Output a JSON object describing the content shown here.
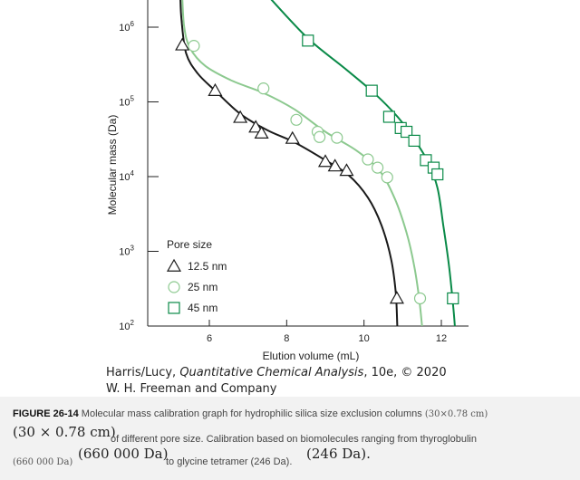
{
  "colors": {
    "series_12_5": "#1a1a1a",
    "series_25": "#8cc98f",
    "series_45": "#0a8a48",
    "caption_bg": "#f2f2f2"
  },
  "chart_data": {
    "type": "line",
    "title": "",
    "xlabel": "Elution volume (mL)",
    "ylabel": "Molecular mass (Da)",
    "xlim": [
      4.4,
      13.0
    ],
    "ylim_log10": [
      2,
      6.4
    ],
    "y_scale": "log",
    "x_ticks": [
      6,
      8,
      10,
      12
    ],
    "x_tick_labels": [
      "6",
      "8",
      "10",
      "12"
    ],
    "y_ticks_log10": [
      2,
      3,
      4,
      5,
      6
    ],
    "y_tick_labels": [
      {
        "base": "10",
        "exp": "2"
      },
      {
        "base": "10",
        "exp": "3"
      },
      {
        "base": "10",
        "exp": "4"
      },
      {
        "base": "10",
        "exp": "5"
      },
      {
        "base": "10",
        "exp": "6"
      }
    ],
    "legend": {
      "title": "Pore size",
      "position": "lower-left",
      "entries": [
        {
          "label": "12.5 nm",
          "marker": "triangle",
          "series": "12.5 nm"
        },
        {
          "label": "25 nm",
          "marker": "circle",
          "series": "25 nm"
        },
        {
          "label": "45 nm",
          "marker": "square",
          "series": "45 nm"
        }
      ]
    },
    "series": [
      {
        "name": "12.5 nm",
        "marker": "triangle",
        "color": "#1a1a1a",
        "points": [
          [
            5.3,
            5.76
          ],
          [
            6.15,
            5.15
          ],
          [
            6.8,
            4.79
          ],
          [
            7.2,
            4.66
          ],
          [
            7.35,
            4.58
          ],
          [
            8.15,
            4.51
          ],
          [
            9.0,
            4.2
          ],
          [
            9.25,
            4.14
          ],
          [
            9.55,
            4.08
          ],
          [
            10.85,
            2.37
          ]
        ],
        "curve": [
          [
            5.25,
            6.4
          ],
          [
            5.28,
            6.1
          ],
          [
            5.4,
            5.65
          ],
          [
            5.7,
            5.38
          ],
          [
            6.15,
            5.15
          ],
          [
            6.8,
            4.84
          ],
          [
            7.5,
            4.62
          ],
          [
            8.2,
            4.46
          ],
          [
            9.0,
            4.22
          ],
          [
            9.6,
            4.02
          ],
          [
            10.1,
            3.72
          ],
          [
            10.45,
            3.35
          ],
          [
            10.7,
            2.9
          ],
          [
            10.82,
            2.45
          ],
          [
            10.86,
            2.0
          ]
        ]
      },
      {
        "name": "25 nm",
        "marker": "circle",
        "color": "#8cc98f",
        "points": [
          [
            5.6,
            5.75
          ],
          [
            7.4,
            5.18
          ],
          [
            8.25,
            4.76
          ],
          [
            8.8,
            4.6
          ],
          [
            8.85,
            4.53
          ],
          [
            9.3,
            4.52
          ],
          [
            10.1,
            4.23
          ],
          [
            10.35,
            4.12
          ],
          [
            10.6,
            3.99
          ],
          [
            11.45,
            2.37
          ]
        ],
        "curve": [
          [
            5.3,
            6.4
          ],
          [
            5.35,
            6.0
          ],
          [
            5.5,
            5.72
          ],
          [
            5.9,
            5.48
          ],
          [
            6.6,
            5.28
          ],
          [
            7.4,
            5.12
          ],
          [
            8.2,
            4.9
          ],
          [
            9.0,
            4.6
          ],
          [
            9.8,
            4.35
          ],
          [
            10.4,
            4.08
          ],
          [
            10.8,
            3.7
          ],
          [
            11.1,
            3.25
          ],
          [
            11.3,
            2.8
          ],
          [
            11.43,
            2.35
          ],
          [
            11.5,
            2.0
          ]
        ]
      },
      {
        "name": "45 nm",
        "marker": "square",
        "color": "#0a8a48",
        "points": [
          [
            8.55,
            5.82
          ],
          [
            10.2,
            5.15
          ],
          [
            10.65,
            4.8
          ],
          [
            10.95,
            4.65
          ],
          [
            11.1,
            4.6
          ],
          [
            11.3,
            4.48
          ],
          [
            11.6,
            4.22
          ],
          [
            11.8,
            4.12
          ],
          [
            11.9,
            4.03
          ],
          [
            12.3,
            2.37
          ]
        ],
        "curve": [
          [
            7.55,
            6.4
          ],
          [
            8.55,
            5.85
          ],
          [
            9.5,
            5.45
          ],
          [
            10.3,
            5.1
          ],
          [
            10.9,
            4.78
          ],
          [
            11.3,
            4.5
          ],
          [
            11.65,
            4.2
          ],
          [
            11.9,
            3.85
          ],
          [
            12.05,
            3.35
          ],
          [
            12.2,
            2.8
          ],
          [
            12.3,
            2.3
          ],
          [
            12.35,
            2.0
          ]
        ]
      }
    ]
  },
  "credit": {
    "line1_prefix": "Harris/Lucy, ",
    "line1_book": "Quantitative Chemical Analysis",
    "line1_suffix": ", 10e, © 2020",
    "line2": "W. H. Freeman and Company"
  },
  "caption": {
    "figure_label": "FIGURE 26-14",
    "line1_text": " Molecular mass calibration graph for hydrophilic silica size exclusion columns ",
    "line1_small": "(30×0.78 cm)",
    "line2_big": "(30 × 0.78 cm)",
    "line2_text": " of different pore size. Calibration based on biomolecules ranging from thyroglobulin",
    "line3_small": "(660 000 Da)",
    "line3_big": "(660 000 Da)",
    "line3_text": " to glycine tetramer (246 Da).",
    "line3_big2": "(246 Da)."
  }
}
